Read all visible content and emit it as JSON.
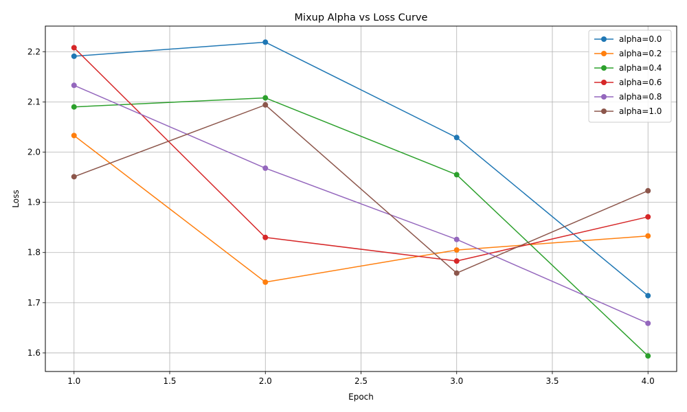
{
  "chart_data": {
    "type": "line",
    "title": "Mixup Alpha vs Loss Curve",
    "xlabel": "Epoch",
    "ylabel": "Loss",
    "x": [
      1,
      2,
      3,
      4
    ],
    "xlim": [
      0.85,
      4.15
    ],
    "ylim": [
      1.563,
      2.251
    ],
    "xticks": [
      1.0,
      1.5,
      2.0,
      2.5,
      3.0,
      3.5,
      4.0
    ],
    "xtick_labels": [
      "1.0",
      "1.5",
      "2.0",
      "2.5",
      "3.0",
      "3.5",
      "4.0"
    ],
    "yticks": [
      1.6,
      1.7,
      1.8,
      1.9,
      2.0,
      2.1,
      2.2
    ],
    "ytick_labels": [
      "1.6",
      "1.7",
      "1.8",
      "1.9",
      "2.0",
      "2.1",
      "2.2"
    ],
    "grid": true,
    "legend_position": "top-right",
    "series": [
      {
        "name": "alpha=0.0",
        "color": "#1f77b4",
        "values": [
          2.191,
          2.219,
          2.029,
          1.714
        ]
      },
      {
        "name": "alpha=0.2",
        "color": "#ff7f0e",
        "values": [
          2.033,
          1.741,
          1.805,
          1.833
        ]
      },
      {
        "name": "alpha=0.4",
        "color": "#2ca02c",
        "values": [
          2.09,
          2.108,
          1.955,
          1.594
        ]
      },
      {
        "name": "alpha=0.6",
        "color": "#d62728",
        "values": [
          2.208,
          1.83,
          1.783,
          1.871
        ]
      },
      {
        "name": "alpha=0.8",
        "color": "#9467bd",
        "values": [
          2.133,
          1.968,
          1.826,
          1.659
        ]
      },
      {
        "name": "alpha=1.0",
        "color": "#8c564b",
        "values": [
          1.951,
          2.094,
          1.759,
          1.923
        ]
      }
    ]
  }
}
